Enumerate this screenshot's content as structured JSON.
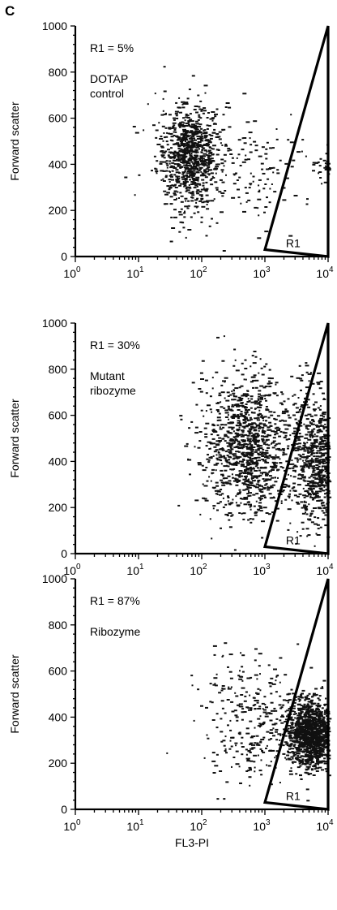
{
  "figure": {
    "panel_letter": "C"
  },
  "chart_data": [
    {
      "type": "scatter",
      "xlabel": "",
      "ylabel": "Forward scatter",
      "xscale": "log",
      "xlim": [
        1,
        10000
      ],
      "ylim": [
        0,
        1000
      ],
      "x_ticks": [
        1,
        10,
        100,
        1000,
        10000
      ],
      "y_ticks": [
        0,
        200,
        400,
        600,
        800,
        1000
      ],
      "annotations": [
        "R1 = 5%",
        "DOTAP",
        "control"
      ],
      "gate": {
        "label": "R1",
        "vertices": [
          [
            1000,
            30
          ],
          [
            10000,
            1000
          ],
          [
            10000,
            0
          ]
        ]
      },
      "clusters": [
        {
          "x_center": 60,
          "y_center": 440,
          "x_spread_decades": 0.25,
          "y_spread": 110,
          "count": 900
        },
        {
          "x_center": 800,
          "y_center": 380,
          "x_spread_decades": 0.45,
          "y_spread": 120,
          "count": 120
        },
        {
          "x_center": 9000,
          "y_center": 400,
          "x_spread_decades": 0.08,
          "y_spread": 40,
          "count": 40
        }
      ]
    },
    {
      "type": "scatter",
      "xlabel": "",
      "ylabel": "Forward scatter",
      "xscale": "log",
      "xlim": [
        1,
        10000
      ],
      "ylim": [
        0,
        1000
      ],
      "x_ticks": [
        1,
        10,
        100,
        1000,
        10000
      ],
      "y_ticks": [
        0,
        200,
        400,
        600,
        800,
        1000
      ],
      "annotations": [
        "R1 = 30%",
        "Mutant",
        "ribozyme"
      ],
      "gate": {
        "label": "R1",
        "vertices": [
          [
            1000,
            30
          ],
          [
            10000,
            1000
          ],
          [
            10000,
            0
          ]
        ]
      },
      "clusters": [
        {
          "x_center": 500,
          "y_center": 470,
          "x_spread_decades": 0.35,
          "y_spread": 150,
          "count": 1100
        },
        {
          "x_center": 6000,
          "y_center": 400,
          "x_spread_decades": 0.2,
          "y_spread": 150,
          "count": 700
        }
      ]
    },
    {
      "type": "scatter",
      "xlabel": "FL3-PI",
      "ylabel": "Forward scatter",
      "xscale": "log",
      "xlim": [
        1,
        10000
      ],
      "ylim": [
        0,
        1000
      ],
      "x_ticks": [
        1,
        10,
        100,
        1000,
        10000
      ],
      "y_ticks": [
        0,
        200,
        400,
        600,
        800,
        1000
      ],
      "annotations": [
        "R1 = 87%",
        "Ribozyme"
      ],
      "gate": {
        "label": "R1",
        "vertices": [
          [
            1000,
            30
          ],
          [
            10000,
            1000
          ],
          [
            10000,
            0
          ]
        ]
      },
      "clusters": [
        {
          "x_center": 5000,
          "y_center": 330,
          "x_spread_decades": 0.18,
          "y_spread": 70,
          "count": 1200
        },
        {
          "x_center": 700,
          "y_center": 380,
          "x_spread_decades": 0.45,
          "y_spread": 140,
          "count": 320
        }
      ]
    }
  ]
}
